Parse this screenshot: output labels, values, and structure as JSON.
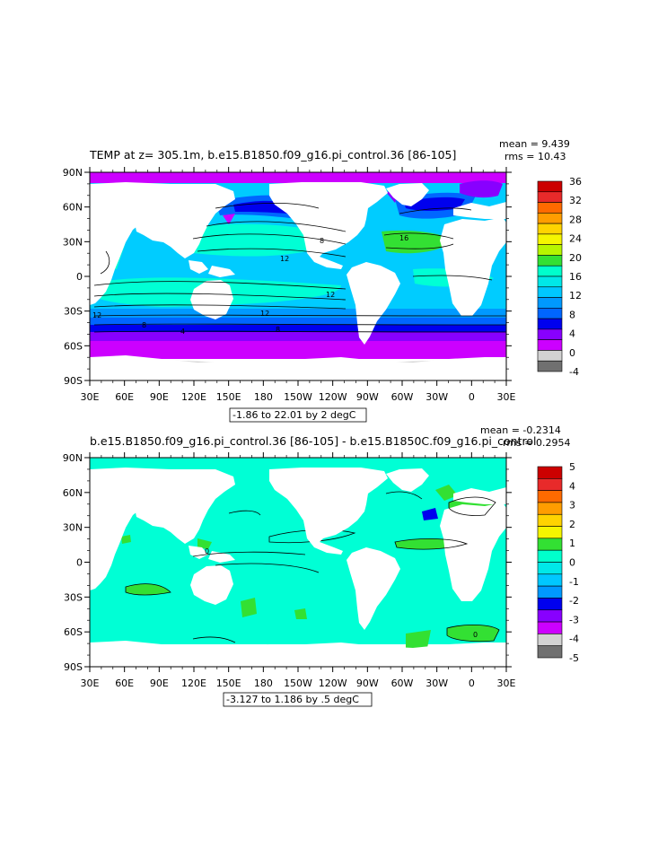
{
  "panels": [
    {
      "title": "TEMP at z= 305.1m, b.e15.B1850.f09_g16.pi_control.36 [86-105]",
      "mean": "mean = 9.439",
      "rms": "rms = 10.43",
      "contour_info": "-1.86 to 22.01 by 2 degC",
      "colorbar": {
        "labels": [
          "36",
          "32",
          "28",
          "24",
          "20",
          "16",
          "12",
          "8",
          "4",
          "0",
          "-4"
        ],
        "colors": [
          "#cc0000",
          "#e82a2a",
          "#ff6a00",
          "#ff9d00",
          "#ffd300",
          "#f5f500",
          "#b7f500",
          "#33e033",
          "#00ffcc",
          "#00e8e8",
          "#00c8ff",
          "#0099ff",
          "#0066ff",
          "#0000ee",
          "#8800ff",
          "#cc00ff",
          "#d2d2d2",
          "#707070"
        ]
      },
      "contour_labels": [
        "8",
        "16",
        "12",
        "12",
        "12",
        "8",
        "4",
        "12",
        "8"
      ]
    },
    {
      "title": "b.e15.B1850.f09_g16.pi_control.36 [86-105] - b.e15.B1850C.f09_g16.pi_control",
      "mean": "mean = -0.2314",
      "rms": "rms = 0.2954",
      "contour_info": "-3.127 to 1.186 by .5 degC",
      "colorbar": {
        "labels": [
          "5",
          "4",
          "3",
          "2",
          "1",
          "0",
          "-1",
          "-2",
          "-3",
          "-4",
          "-5"
        ],
        "colors": [
          "#cc0000",
          "#e82a2a",
          "#ff6a00",
          "#ff9d00",
          "#ffd300",
          "#f5f500",
          "#33e033",
          "#00ffcc",
          "#00e8e8",
          "#00c8ff",
          "#0099ff",
          "#0000ee",
          "#8800ff",
          "#cc00ff",
          "#d2d2d2",
          "#707070"
        ]
      },
      "contour_labels": [
        "0",
        "0"
      ]
    }
  ],
  "axes": {
    "lat_labels": [
      "90N",
      "60N",
      "30N",
      "0",
      "30S",
      "60S",
      "90S"
    ],
    "lon_labels": [
      "30E",
      "60E",
      "90E",
      "120E",
      "150E",
      "180",
      "150W",
      "120W",
      "90W",
      "60W",
      "30W",
      "0",
      "30E"
    ]
  },
  "colors": {
    "land": "#ffffff",
    "panel1_base": "#00ccff",
    "panel2_base": "#00ffd5"
  }
}
